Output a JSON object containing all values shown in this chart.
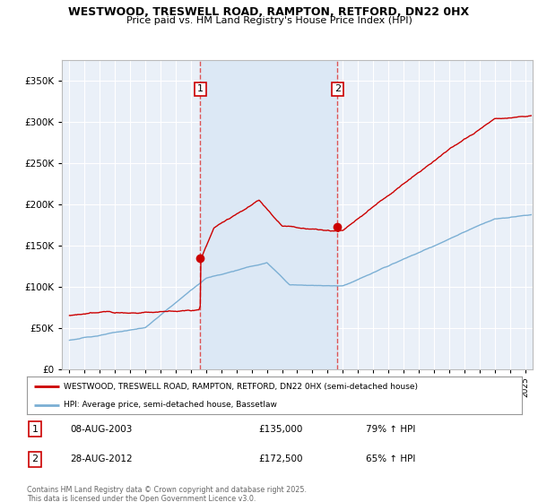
{
  "title": "WESTWOOD, TRESWELL ROAD, RAMPTON, RETFORD, DN22 0HX",
  "subtitle": "Price paid vs. HM Land Registry's House Price Index (HPI)",
  "legend_line1": "WESTWOOD, TRESWELL ROAD, RAMPTON, RETFORD, DN22 0HX (semi-detached house)",
  "legend_line2": "HPI: Average price, semi-detached house, Bassetlaw",
  "transaction1_label": "1",
  "transaction1_date": "08-AUG-2003",
  "transaction1_price": "£135,000",
  "transaction1_hpi": "79% ↑ HPI",
  "transaction2_label": "2",
  "transaction2_date": "28-AUG-2012",
  "transaction2_price": "£172,500",
  "transaction2_hpi": "65% ↑ HPI",
  "footer": "Contains HM Land Registry data © Crown copyright and database right 2025.\nThis data is licensed under the Open Government Licence v3.0.",
  "red_line_color": "#cc0000",
  "blue_line_color": "#7bafd4",
  "vline_color": "#dd4444",
  "shade_color": "#dce8f5",
  "bg_color": "#ffffff",
  "plot_bg_color": "#eaf0f8",
  "grid_color": "#ffffff",
  "ylim_min": 0,
  "ylim_max": 375000,
  "xlim_min": 1994.5,
  "xlim_max": 2025.5,
  "vline1_x": 2003.62,
  "vline2_x": 2012.65,
  "marker1_x": 2003.62,
  "marker1_y": 135000,
  "marker2_x": 2012.65,
  "marker2_y": 172500,
  "yticks": [
    0,
    50000,
    100000,
    150000,
    200000,
    250000,
    300000,
    350000
  ]
}
